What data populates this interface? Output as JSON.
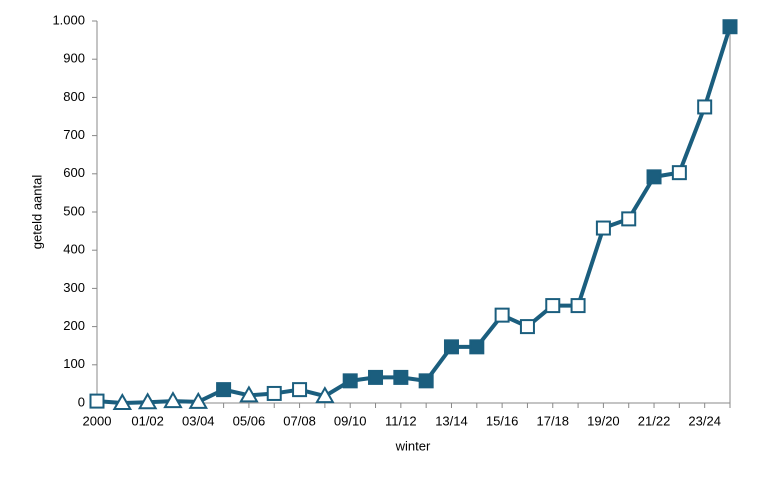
{
  "chart_data": {
    "type": "line",
    "x_label": "winter",
    "y_label": "geteld aantal",
    "categories": [
      "2000",
      null,
      "01/02",
      null,
      "03/04",
      null,
      "05/06",
      null,
      "07/08",
      null,
      "09/10",
      null,
      "11/12",
      null,
      "13/14",
      null,
      "15/16",
      null,
      "17/18",
      null,
      "19/20",
      null,
      "21/22",
      null,
      "23/24",
      null
    ],
    "values": [
      5,
      0,
      2,
      5,
      3,
      35,
      20,
      25,
      35,
      18,
      58,
      67,
      67,
      58,
      147,
      147,
      230,
      200,
      255,
      255,
      458,
      482,
      592,
      603,
      775,
      985
    ],
    "markers": [
      "open-square",
      "open-triangle",
      "open-triangle",
      "open-triangle",
      "open-triangle",
      "filled-square",
      "open-triangle",
      "open-square",
      "open-square",
      "open-triangle",
      "filled-square",
      "filled-square",
      "filled-square",
      "filled-square",
      "filled-square",
      "filled-square",
      "open-square",
      "open-square",
      "open-square",
      "open-square",
      "open-square",
      "open-square",
      "filled-square",
      "open-square",
      "open-square",
      "filled-square"
    ],
    "color": "#1b5e7e",
    "ylim": [
      0,
      1000
    ],
    "yticks": [
      0,
      100,
      200,
      300,
      400,
      500,
      600,
      700,
      800,
      900,
      {
        "value": 1000,
        "label": "1.000"
      }
    ]
  }
}
